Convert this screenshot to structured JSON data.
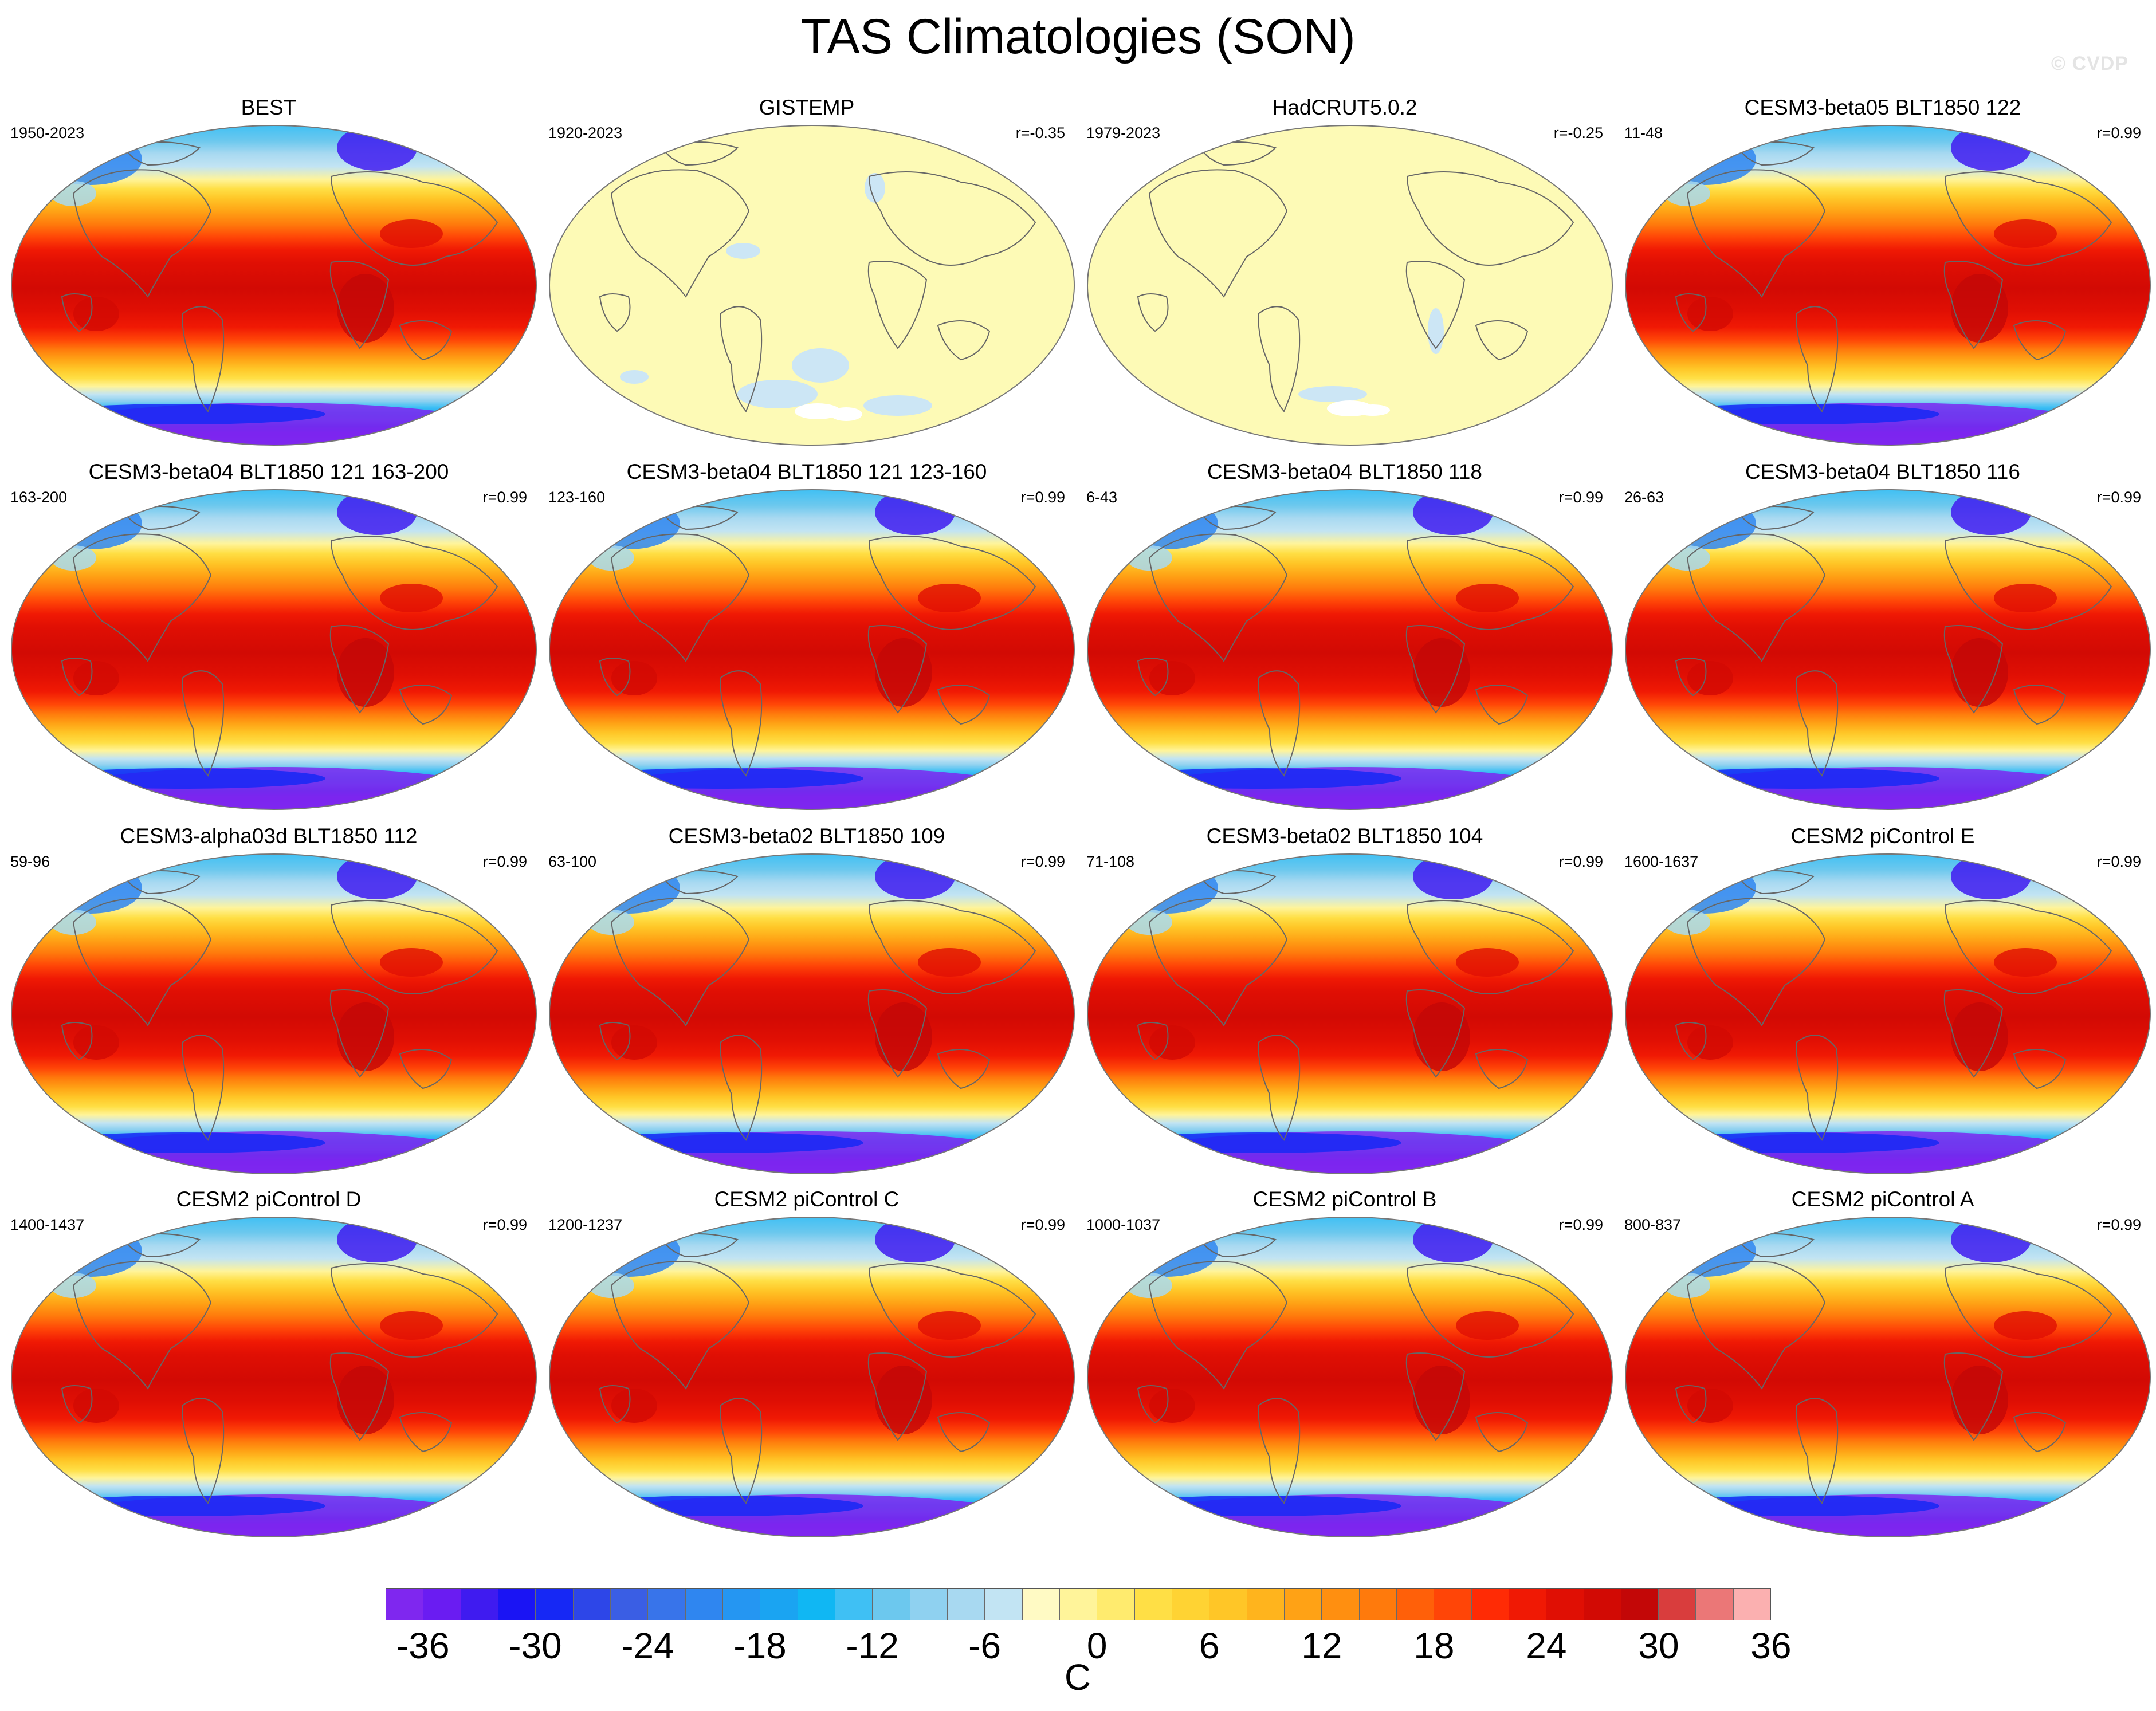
{
  "title": "TAS Climatologies (SON)",
  "watermark": "© CVDP",
  "panels": [
    {
      "title": "BEST",
      "left": "1950-2023",
      "right": "",
      "style": "field"
    },
    {
      "title": "GISTEMP",
      "left": "1920-2023",
      "right": "r=-0.35",
      "style": "flat_gis"
    },
    {
      "title": "HadCRUT5.0.2",
      "left": "1979-2023",
      "right": "r=-0.25",
      "style": "flat_had"
    },
    {
      "title": "CESM3-beta05 BLT1850 122",
      "left": "11-48",
      "right": "r=0.99",
      "style": "field"
    },
    {
      "title": "CESM3-beta04 BLT1850 121 163-200",
      "left": "163-200",
      "right": "r=0.99",
      "style": "field"
    },
    {
      "title": "CESM3-beta04 BLT1850 121 123-160",
      "left": "123-160",
      "right": "r=0.99",
      "style": "field"
    },
    {
      "title": "CESM3-beta04 BLT1850 118",
      "left": "6-43",
      "right": "r=0.99",
      "style": "field"
    },
    {
      "title": "CESM3-beta04 BLT1850 116",
      "left": "26-63",
      "right": "r=0.99",
      "style": "field"
    },
    {
      "title": "CESM3-alpha03d BLT1850 112",
      "left": "59-96",
      "right": "r=0.99",
      "style": "field"
    },
    {
      "title": "CESM3-beta02 BLT1850 109",
      "left": "63-100",
      "right": "r=0.99",
      "style": "field"
    },
    {
      "title": "CESM3-beta02 BLT1850 104",
      "left": "71-108",
      "right": "r=0.99",
      "style": "field"
    },
    {
      "title": "CESM2 piControl E",
      "left": "1600-1637",
      "right": "r=0.99",
      "style": "field"
    },
    {
      "title": "CESM2 piControl D",
      "left": "1400-1437",
      "right": "r=0.99",
      "style": "field"
    },
    {
      "title": "CESM2 piControl C",
      "left": "1200-1237",
      "right": "r=0.99",
      "style": "field"
    },
    {
      "title": "CESM2 piControl B",
      "left": "1000-1037",
      "right": "r=0.99",
      "style": "field"
    },
    {
      "title": "CESM2 piControl A",
      "left": "800-837",
      "right": "r=0.99",
      "style": "field"
    }
  ],
  "colorbar": {
    "units": "C",
    "tick_labels": [
      "-36",
      "-30",
      "-24",
      "-18",
      "-12",
      "-6",
      "0",
      "6",
      "12",
      "18",
      "24",
      "30",
      "36"
    ],
    "tick_values": [
      -36,
      -30,
      -24,
      -18,
      -12,
      -6,
      0,
      6,
      12,
      18,
      24,
      30,
      36
    ],
    "contour_interval": 2,
    "colors": [
      "#7f27ef",
      "#6a1cf2",
      "#3f1bf0",
      "#1a14f4",
      "#1628f5",
      "#2d46e8",
      "#3a5ee4",
      "#3874ea",
      "#2f86f0",
      "#2596f2",
      "#1aa4f2",
      "#10b7f3",
      "#3fc0f4",
      "#6cc8ee",
      "#8fd1f0",
      "#a8d9f1",
      "#c2e4f3",
      "#fffac4",
      "#fff49a",
      "#ffeb6e",
      "#ffdf45",
      "#ffd333",
      "#ffc627",
      "#ffb41d",
      "#ffa215",
      "#ff8f10",
      "#ff7a0c",
      "#ff6009",
      "#ff4507",
      "#ff2b05",
      "#f01904",
      "#e00f04",
      "#d20a04",
      "#c30707",
      "#d93d3d",
      "#eb7777",
      "#fbb0b0"
    ]
  },
  "flat_colors": {
    "fill": "#fdfab6",
    "negative": "#cce6f5",
    "missing": "#ffffff",
    "coast": "#666666"
  }
}
